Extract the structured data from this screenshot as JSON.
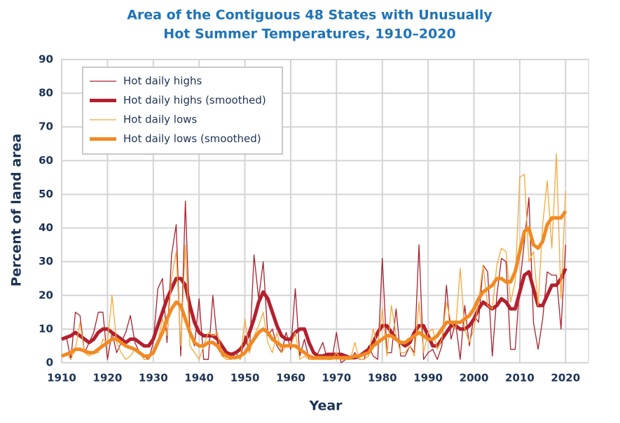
{
  "chart_data": {
    "type": "line",
    "title": [
      "Area of the Contiguous 48 States with Unusually",
      "Hot Summer Temperatures, 1910–2020"
    ],
    "x_label": "Year",
    "y_label": "Percent of land area",
    "xlim": [
      1910,
      2025
    ],
    "xticks": [
      1910,
      1920,
      1930,
      1940,
      1950,
      1960,
      1970,
      1980,
      1990,
      2000,
      2010,
      2020
    ],
    "ylim": [
      0,
      90
    ],
    "yticks": [
      0,
      10,
      20,
      30,
      40,
      50,
      60,
      70,
      80,
      90
    ],
    "grid": true,
    "legend": "upper left",
    "x": [
      1910,
      1911,
      1912,
      1913,
      1914,
      1915,
      1916,
      1917,
      1918,
      1919,
      1920,
      1921,
      1922,
      1923,
      1924,
      1925,
      1926,
      1927,
      1928,
      1929,
      1930,
      1931,
      1932,
      1933,
      1934,
      1935,
      1936,
      1937,
      1938,
      1939,
      1940,
      1941,
      1942,
      1943,
      1944,
      1945,
      1946,
      1947,
      1948,
      1949,
      1950,
      1951,
      1952,
      1953,
      1954,
      1955,
      1956,
      1957,
      1958,
      1959,
      1960,
      1961,
      1962,
      1963,
      1964,
      1965,
      1966,
      1967,
      1968,
      1969,
      1970,
      1971,
      1972,
      1973,
      1974,
      1975,
      1976,
      1977,
      1978,
      1979,
      1980,
      1981,
      1982,
      1983,
      1984,
      1985,
      1986,
      1987,
      1988,
      1989,
      1990,
      1991,
      1992,
      1993,
      1994,
      1995,
      1996,
      1997,
      1998,
      1999,
      2000,
      2001,
      2002,
      2003,
      2004,
      2005,
      2006,
      2007,
      2008,
      2009,
      2010,
      2011,
      2012,
      2013,
      2014,
      2015,
      2016,
      2017,
      2018,
      2019,
      2020
    ],
    "series": [
      {
        "name": "Hot daily highs",
        "color": "#a8212e",
        "width": 1.3,
        "values": [
          7,
          8,
          1,
          15,
          14,
          3,
          6,
          9,
          15,
          15,
          1,
          9,
          3,
          6,
          9,
          14,
          6,
          3,
          2,
          1,
          6,
          22,
          25,
          6,
          32,
          41,
          2,
          48,
          9,
          5,
          19,
          1,
          1,
          20,
          6,
          2,
          2,
          1,
          3,
          1,
          8,
          3,
          32,
          19,
          30,
          8,
          10,
          5,
          3,
          9,
          4,
          22,
          2,
          7,
          1,
          1,
          3,
          6,
          1,
          1,
          9,
          0,
          1,
          1,
          3,
          1,
          1,
          5,
          2,
          1,
          31,
          3,
          3,
          16,
          2,
          2,
          5,
          3,
          35,
          1,
          3,
          4,
          1,
          5,
          23,
          7,
          12,
          1,
          17,
          5,
          14,
          12,
          29,
          27,
          2,
          20,
          31,
          30,
          4,
          4,
          23,
          36,
          49,
          12,
          4,
          13,
          27,
          26,
          26,
          10,
          35
        ]
      },
      {
        "name": "Hot daily highs (smoothed)",
        "color": "#b3202e",
        "width": 5,
        "values": [
          7,
          7.5,
          8,
          9,
          8,
          7,
          6,
          7,
          9,
          10,
          10,
          9,
          8,
          7,
          6,
          7,
          7,
          6,
          5,
          5,
          7,
          11,
          15,
          19,
          22,
          25,
          25,
          23,
          17,
          12,
          9,
          8,
          8,
          8,
          7,
          5,
          3,
          2.5,
          3,
          4,
          6,
          9,
          13,
          18,
          21,
          19,
          15,
          11,
          8,
          7,
          7,
          9,
          10,
          10,
          6,
          3,
          2,
          2,
          2.5,
          2.5,
          2.5,
          2.5,
          2,
          1.5,
          1.5,
          2,
          3,
          4,
          6,
          9,
          11,
          11,
          9,
          7,
          6,
          5,
          6,
          9,
          11,
          11,
          8,
          5,
          5,
          7,
          9,
          11,
          11,
          10,
          10,
          11,
          13,
          16,
          18,
          17,
          16,
          17,
          19,
          18,
          16,
          16,
          21,
          26,
          27,
          22,
          17,
          17,
          20,
          23,
          23,
          25,
          28
        ]
      },
      {
        "name": "Hot daily lows",
        "color": "#f5a83a",
        "width": 1.3,
        "values": [
          2,
          3,
          1,
          4,
          12,
          3,
          2,
          3,
          3,
          7,
          6,
          20,
          6,
          3,
          1,
          2,
          4,
          3,
          1,
          1,
          3,
          6,
          13,
          8,
          25,
          33,
          5,
          35,
          5,
          3,
          1,
          5,
          9,
          8,
          9,
          2,
          1,
          1,
          2,
          1,
          13,
          3,
          8,
          11,
          15,
          6,
          3,
          9,
          3,
          5,
          5,
          9,
          1,
          2,
          1,
          1,
          1,
          1,
          1,
          1,
          3,
          1,
          1,
          1,
          6,
          1,
          1,
          2,
          10,
          5,
          16,
          2,
          17,
          8,
          3,
          3,
          5,
          2,
          18,
          3,
          9,
          10,
          4,
          7,
          18,
          12,
          10,
          28,
          10,
          6,
          10,
          18,
          29,
          17,
          16,
          29,
          34,
          33,
          18,
          24,
          55,
          56,
          30,
          33,
          17,
          41,
          54,
          34,
          62,
          19,
          51
        ]
      },
      {
        "name": "Hot daily lows (smoothed)",
        "color": "#f18a23",
        "width": 5,
        "values": [
          2,
          2.5,
          3,
          4,
          4,
          3.5,
          3,
          3,
          4,
          5,
          6,
          7,
          7,
          6,
          5,
          4.5,
          4,
          3,
          2,
          2,
          3,
          6,
          9,
          13,
          16,
          18,
          17,
          13,
          9,
          6,
          5,
          5,
          6,
          6,
          5,
          3,
          2,
          1.5,
          1.5,
          2,
          3,
          5,
          7,
          9,
          10,
          9,
          7,
          6,
          5,
          5,
          5,
          5,
          4,
          3,
          2,
          1.5,
          1.5,
          1.5,
          1.5,
          1.5,
          1.5,
          1.5,
          1.5,
          1.5,
          2,
          2,
          2.5,
          3,
          5,
          6,
          7,
          8,
          8,
          7,
          6,
          6,
          7,
          8,
          9,
          8,
          7,
          7,
          8,
          10,
          12,
          12,
          12,
          12,
          13,
          14,
          16,
          19,
          21,
          22,
          23,
          25,
          25,
          24,
          24,
          27,
          33,
          39,
          40,
          35,
          34,
          36,
          41,
          43,
          43,
          43,
          45
        ]
      }
    ]
  }
}
